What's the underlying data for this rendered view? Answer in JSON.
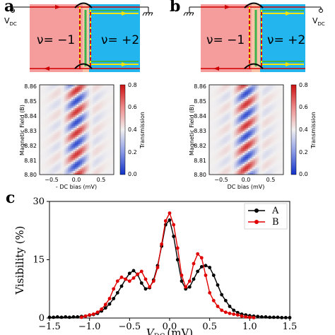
{
  "panels": {
    "a": {
      "label": "a",
      "vdc_label": "V",
      "vdc_sub": "DC",
      "region_left": "ν= −1",
      "region_right": "ν= +2",
      "heatmap": {
        "xlabel": "- DC bias (mV)",
        "ylabel": "Magnetic Field (B)",
        "cbar_label": "Transmission",
        "xticks": [
          "−0.5",
          "0.0",
          "0.5"
        ],
        "yticks": [
          "8.86",
          "8.85",
          "8.84",
          "8.83",
          "8.82",
          "8.81",
          "8.80"
        ],
        "cbar_ticks": [
          "0.8",
          "0.6",
          "0.4",
          "0.2",
          "0.0"
        ]
      }
    },
    "b": {
      "label": "b",
      "vdc_label": "V",
      "vdc_sub": "DC",
      "region_left": "ν= −1",
      "region_right": "ν= +2",
      "heatmap": {
        "xlabel": "DC bias (mV)",
        "ylabel": "Magnetic Field (B)",
        "cbar_label": "Transmission",
        "xticks": [
          "−0.5",
          "0.0",
          "0.5"
        ],
        "yticks": [
          "8.86",
          "8.85",
          "8.84",
          "8.83",
          "8.82",
          "8.81",
          "8.80"
        ],
        "cbar_ticks": [
          "0.8",
          "0.6",
          "0.4",
          "0.2",
          "0.0"
        ]
      }
    },
    "c": {
      "label": "c"
    }
  },
  "colors": {
    "pink": "#f59c9c",
    "cyan": "#22b5ee",
    "red_line": "#d00000",
    "yellow": "#f5e600",
    "green": "#3cb44b",
    "series_a": "#000000",
    "series_b": "#e00000"
  },
  "chart_data": {
    "type": "line",
    "xlabel": "V",
    "xlabel_sub": "DC",
    "xlabel_unit": "(mV)",
    "ylabel": "Visibility (%)",
    "xlim": [
      -1.5,
      1.5
    ],
    "ylim": [
      0,
      30
    ],
    "xticks": [
      -1.5,
      -1.0,
      -0.5,
      0.0,
      0.5,
      1.0,
      1.5
    ],
    "xtick_labels": [
      "−1.5",
      "−1.0",
      "−0.5",
      "0.0",
      "0.5",
      "1.0",
      "1.5"
    ],
    "yticks": [
      0,
      15,
      30
    ],
    "ytick_labels": [
      "0",
      "15",
      "30"
    ],
    "legend_position": "top-right",
    "series": [
      {
        "name": "A",
        "x": [
          -1.5,
          -1.45,
          -1.4,
          -1.35,
          -1.3,
          -1.25,
          -1.2,
          -1.15,
          -1.1,
          -1.05,
          -1.0,
          -0.95,
          -0.9,
          -0.85,
          -0.8,
          -0.75,
          -0.7,
          -0.65,
          -0.6,
          -0.55,
          -0.5,
          -0.45,
          -0.4,
          -0.35,
          -0.3,
          -0.25,
          -0.2,
          -0.15,
          -0.1,
          -0.05,
          0.0,
          0.05,
          0.1,
          0.15,
          0.2,
          0.25,
          0.3,
          0.35,
          0.4,
          0.45,
          0.5,
          0.55,
          0.6,
          0.65,
          0.7,
          0.75,
          0.8,
          0.85,
          0.9,
          0.95,
          1.0,
          1.05,
          1.1,
          1.15,
          1.2,
          1.25,
          1.3,
          1.35,
          1.4,
          1.45,
          1.5
        ],
        "y": [
          0.2,
          0.2,
          0.3,
          0.2,
          0.3,
          0.2,
          0.3,
          0.3,
          0.4,
          0.5,
          0.7,
          0.9,
          1.2,
          1.8,
          2.6,
          3.6,
          5.0,
          6.5,
          8.2,
          10.0,
          11.5,
          12.2,
          11.2,
          9.0,
          7.5,
          7.8,
          9.8,
          13.5,
          18.5,
          24.0,
          25.2,
          21.0,
          15.0,
          9.5,
          7.5,
          8.0,
          10.0,
          12.0,
          13.2,
          13.5,
          13.0,
          11.0,
          8.5,
          6.0,
          4.5,
          3.0,
          2.0,
          1.4,
          1.0,
          0.8,
          0.6,
          0.5,
          0.4,
          0.3,
          0.3,
          0.2,
          0.2,
          0.2,
          0.1,
          0.1,
          0.1
        ]
      },
      {
        "name": "B",
        "x": [
          -1.1,
          -1.05,
          -1.0,
          -0.95,
          -0.9,
          -0.85,
          -0.8,
          -0.75,
          -0.7,
          -0.65,
          -0.6,
          -0.55,
          -0.5,
          -0.45,
          -0.4,
          -0.35,
          -0.3,
          -0.25,
          -0.2,
          -0.15,
          -0.1,
          -0.05,
          0.0,
          0.05,
          0.1,
          0.15,
          0.2,
          0.25,
          0.3,
          0.35,
          0.4,
          0.45,
          0.5,
          0.55,
          0.6,
          0.65,
          0.7,
          0.75,
          0.8,
          0.85,
          0.9,
          0.95,
          1.0,
          1.05
        ],
        "y": [
          0.2,
          0.5,
          0.8,
          1.0,
          1.5,
          2.3,
          3.5,
          5.0,
          7.5,
          9.5,
          10.5,
          10.0,
          9.5,
          10.3,
          11.3,
          12.0,
          10.0,
          8.0,
          9.5,
          13.0,
          19.0,
          25.0,
          27.0,
          24.0,
          18.0,
          11.0,
          8.0,
          9.5,
          14.0,
          16.5,
          15.5,
          11.0,
          6.5,
          4.5,
          3.0,
          2.0,
          1.5,
          1.2,
          1.0,
          0.8,
          0.5,
          0.3,
          0.2,
          0.1
        ]
      }
    ]
  }
}
